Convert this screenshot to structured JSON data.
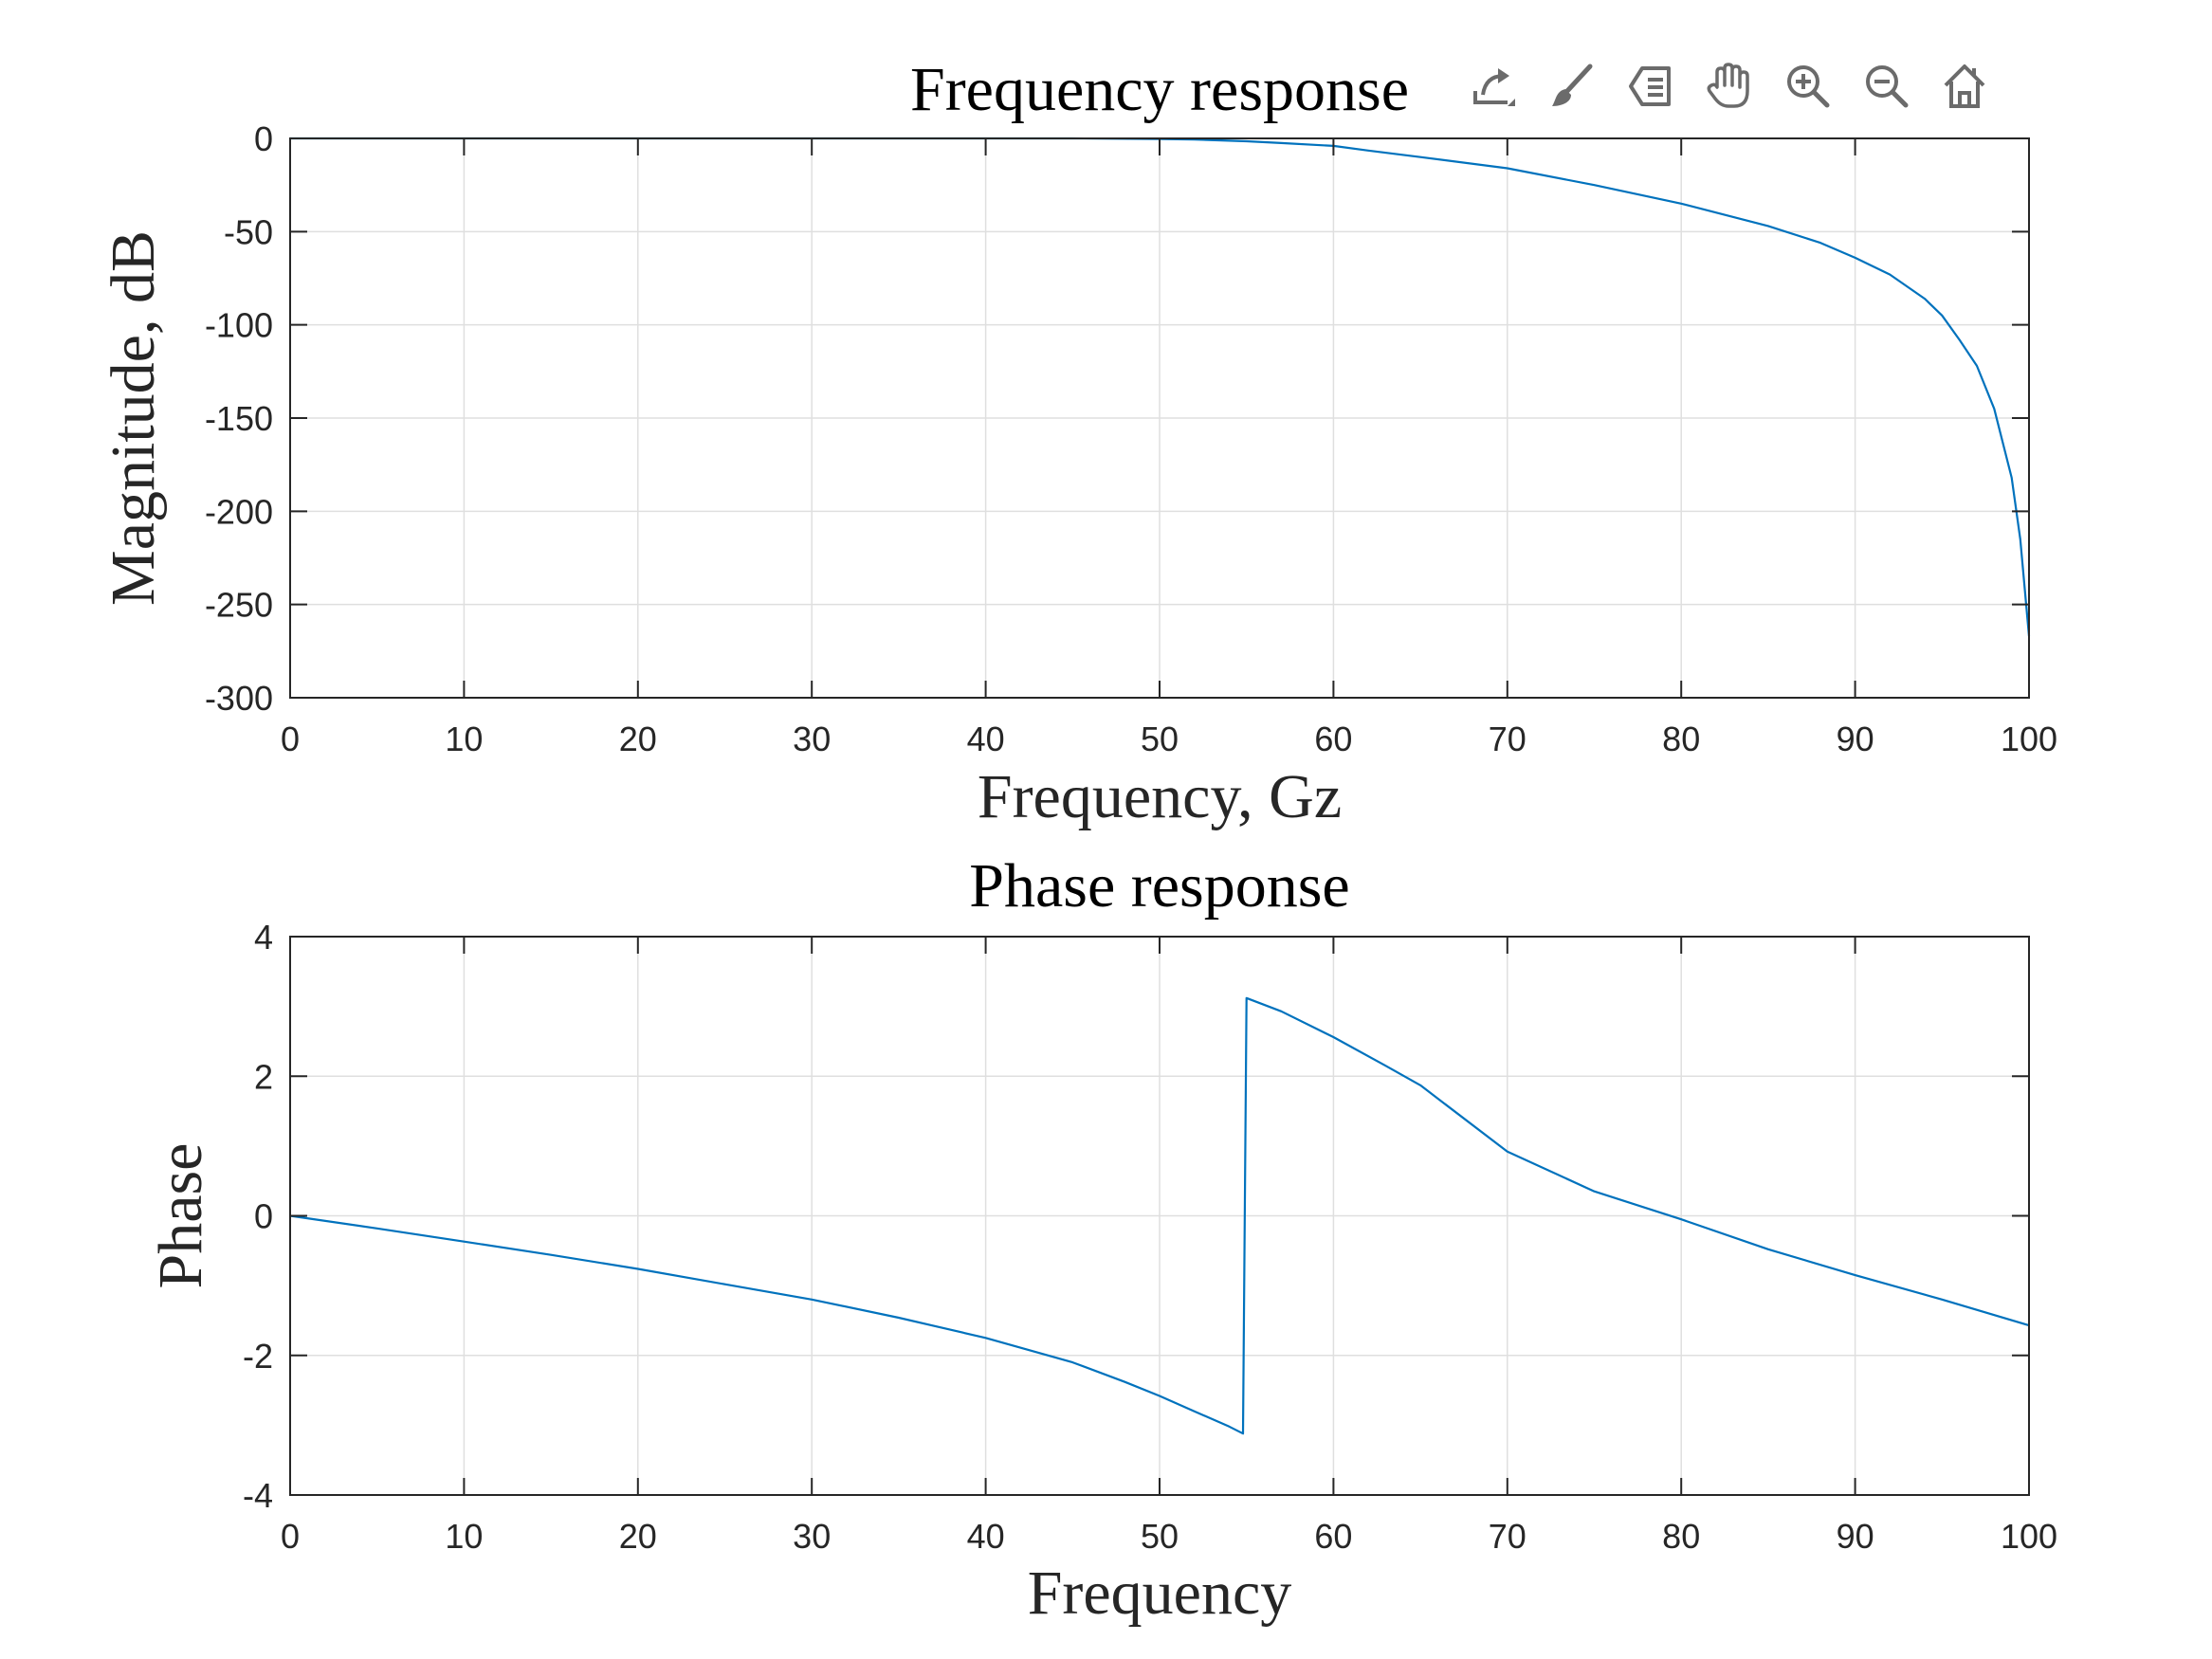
{
  "toolbar": {
    "buttons": [
      {
        "name": "export-icon",
        "label": "Export"
      },
      {
        "name": "brush-icon",
        "label": "Brush"
      },
      {
        "name": "data-tips-icon",
        "label": "Data Tips"
      },
      {
        "name": "pan-icon",
        "label": "Pan"
      },
      {
        "name": "zoom-in-icon",
        "label": "Zoom In"
      },
      {
        "name": "zoom-out-icon",
        "label": "Zoom Out"
      },
      {
        "name": "home-icon",
        "label": "Restore View"
      }
    ]
  },
  "colors": {
    "series": "#0072BD",
    "grid": "#dfdfdf",
    "axis": "#262626",
    "toolbar_icon": "#6b6b6b"
  },
  "chart_data": [
    {
      "type": "line",
      "title": "Frequency response",
      "xlabel": "Frequency, Gz",
      "ylabel": "Magnitude, dB",
      "xlim": [
        0,
        100
      ],
      "ylim": [
        -300,
        0
      ],
      "xticks": [
        0,
        10,
        20,
        30,
        40,
        50,
        60,
        70,
        80,
        90,
        100
      ],
      "yticks": [
        0,
        -50,
        -100,
        -150,
        -200,
        -250,
        -300
      ],
      "xtick_labels": [
        "0",
        "10",
        "20",
        "30",
        "40",
        "50",
        "60",
        "70",
        "80",
        "90",
        "100"
      ],
      "ytick_labels": [
        "0",
        "-50",
        "-100",
        "-150",
        "-200",
        "-250",
        "-300"
      ],
      "grid": true,
      "series": [
        {
          "x": [
            0,
            10,
            20,
            30,
            40,
            45,
            50,
            52,
            55,
            57,
            60,
            62,
            65,
            70,
            75,
            80,
            85,
            88,
            90,
            92,
            94,
            95,
            96,
            97,
            98,
            99,
            99.5,
            100
          ],
          "y": [
            0,
            0,
            0,
            0,
            0,
            0,
            -0.3,
            -0.6,
            -1.5,
            -2.5,
            -4,
            -6.5,
            -10,
            -16,
            -25,
            -35,
            -47,
            -56,
            -64,
            -73,
            -86,
            -95,
            -108,
            -122,
            -145,
            -182,
            -215,
            -267
          ]
        }
      ]
    },
    {
      "type": "line",
      "title": "Phase response",
      "xlabel": "Frequency",
      "ylabel": "Phase",
      "xlim": [
        0,
        100
      ],
      "ylim": [
        -4,
        4
      ],
      "xticks": [
        0,
        10,
        20,
        30,
        40,
        50,
        60,
        70,
        80,
        90,
        100
      ],
      "yticks": [
        4,
        2,
        0,
        -2,
        -4
      ],
      "xtick_labels": [
        "0",
        "10",
        "20",
        "30",
        "40",
        "50",
        "60",
        "70",
        "80",
        "90",
        "100"
      ],
      "ytick_labels": [
        "4",
        "2",
        "0",
        "-2",
        "-4"
      ],
      "grid": true,
      "series": [
        {
          "x": [
            0,
            5,
            10,
            15,
            20,
            25,
            30,
            35,
            40,
            45,
            48,
            50,
            52,
            54,
            54.8,
            55,
            57,
            60,
            63,
            65,
            70,
            75,
            80,
            85,
            90,
            95,
            100
          ],
          "y": [
            0,
            -0.18,
            -0.37,
            -0.56,
            -0.76,
            -0.98,
            -1.2,
            -1.46,
            -1.75,
            -2.1,
            -2.38,
            -2.58,
            -2.8,
            -3.02,
            -3.12,
            3.12,
            2.93,
            2.56,
            2.15,
            1.87,
            0.92,
            0.35,
            -0.05,
            -0.48,
            -0.85,
            -1.2,
            -1.57
          ]
        }
      ]
    }
  ]
}
